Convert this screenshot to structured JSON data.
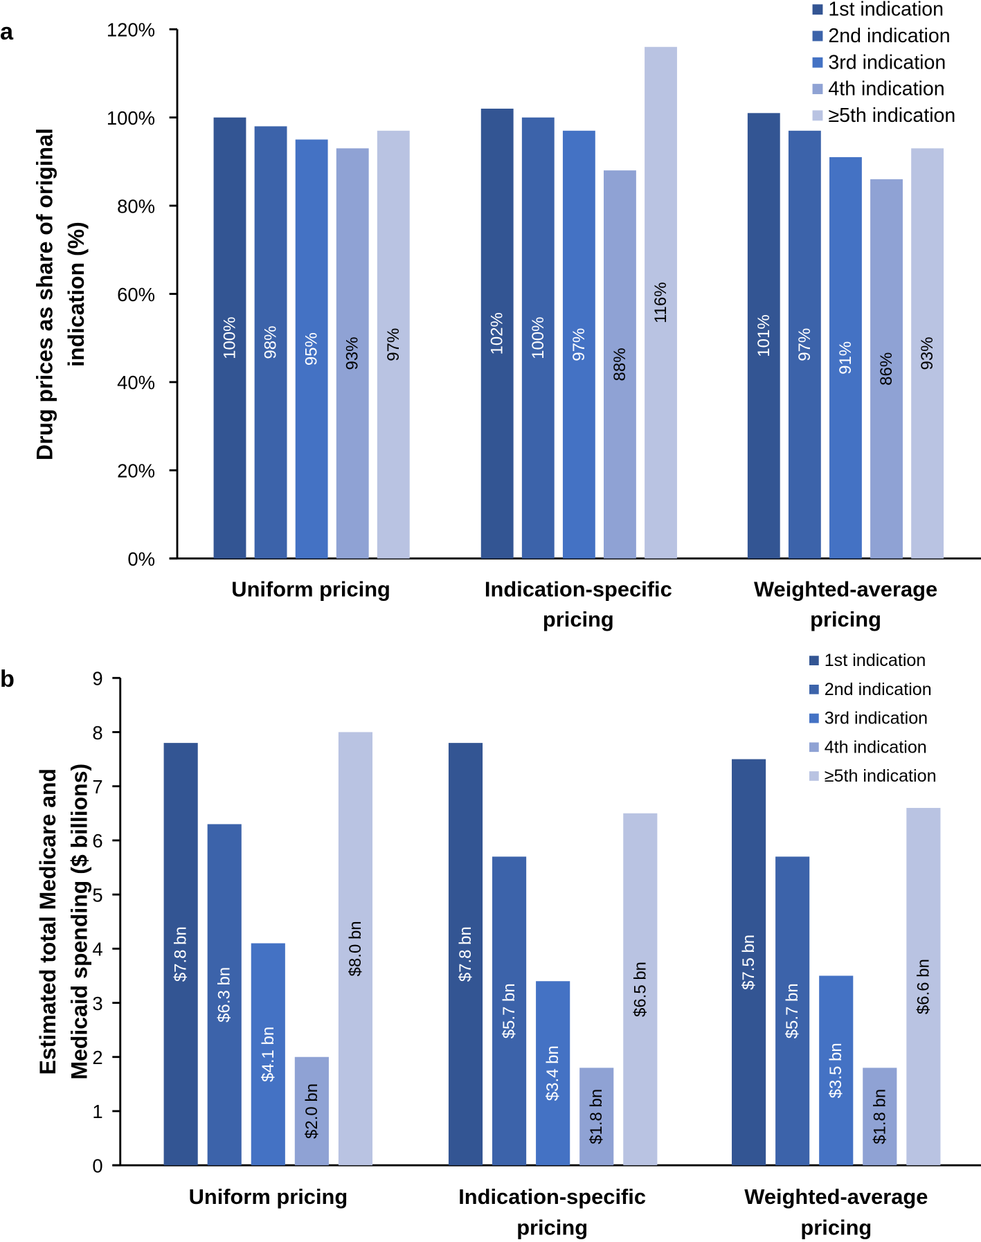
{
  "chart_data": [
    {
      "panel": "a",
      "type": "bar",
      "ylabel": "Drug prices as share of original indication (%)",
      "ylabel_lines": [
        "Drug prices as share of original",
        "indication (%)"
      ],
      "xlabel": "",
      "ylim": [
        0,
        120
      ],
      "yticks": [
        0,
        20,
        40,
        60,
        80,
        100,
        120
      ],
      "ytick_labels": [
        "0%",
        "20%",
        "40%",
        "60%",
        "80%",
        "100%",
        "120%"
      ],
      "categories": [
        "Uniform pricing",
        "Indication-specific pricing",
        "Weighted-average pricing"
      ],
      "category_lines": [
        [
          "Uniform pricing"
        ],
        [
          "Indication-specific",
          "pricing"
        ],
        [
          "Weighted-average",
          "pricing"
        ]
      ],
      "legend_position": "top-right",
      "grid": false,
      "series": [
        {
          "name": "1st indication",
          "color": "#335593",
          "values": [
            100,
            102,
            101
          ],
          "labels": [
            "100%",
            "102%",
            "101%"
          ],
          "label_color": "#ffffff"
        },
        {
          "name": "2nd indication",
          "color": "#3c63aa",
          "values": [
            98,
            100,
            97
          ],
          "labels": [
            "98%",
            "100%",
            "97%"
          ],
          "label_color": "#ffffff"
        },
        {
          "name": "3rd indication",
          "color": "#4472c4",
          "values": [
            95,
            97,
            91
          ],
          "labels": [
            "95%",
            "97%",
            "91%"
          ],
          "label_color": "#ffffff"
        },
        {
          "name": "4th indication",
          "color": "#8fa2d4",
          "values": [
            93,
            88,
            86
          ],
          "labels": [
            "93%",
            "88%",
            "86%"
          ],
          "label_color": "#000000"
        },
        {
          "name": "≥5th indication",
          "color": "#b9c3e2",
          "values": [
            97,
            116,
            93
          ],
          "labels": [
            "97%",
            "116%",
            "93%"
          ],
          "label_color": "#000000"
        }
      ]
    },
    {
      "panel": "b",
      "type": "bar",
      "ylabel": "Estimated total Medicare and Medicaid spending ($ billions)",
      "ylabel_lines": [
        "Estimated total Medicare and",
        "Medicaid spending ($ billions)"
      ],
      "xlabel": "",
      "ylim": [
        0,
        9
      ],
      "yticks": [
        0,
        1,
        2,
        3,
        4,
        5,
        6,
        7,
        8,
        9
      ],
      "ytick_labels": [
        "0",
        "1",
        "2",
        "3",
        "4",
        "5",
        "6",
        "7",
        "8",
        "9"
      ],
      "categories": [
        "Uniform pricing",
        "Indication-specific pricing",
        "Weighted-average pricing"
      ],
      "category_lines": [
        [
          "Uniform pricing"
        ],
        [
          "Indication-specific",
          "pricing"
        ],
        [
          "Weighted-average",
          "pricing"
        ]
      ],
      "legend_position": "top-right",
      "grid": false,
      "series": [
        {
          "name": "1st indication",
          "color": "#335593",
          "values": [
            7.8,
            7.8,
            7.5
          ],
          "labels": [
            "$7.8 bn",
            "$7.8 bn",
            "$7.5 bn"
          ],
          "label_color": "#ffffff"
        },
        {
          "name": "2nd indication",
          "color": "#3c63aa",
          "values": [
            6.3,
            5.7,
            5.7
          ],
          "labels": [
            "$6.3 bn",
            "$5.7 bn",
            "$5.7 bn"
          ],
          "label_color": "#ffffff"
        },
        {
          "name": "3rd indication",
          "color": "#4472c4",
          "values": [
            4.1,
            3.4,
            3.5
          ],
          "labels": [
            "$4.1 bn",
            "$3.4 bn",
            "$3.5 bn"
          ],
          "label_color": "#ffffff"
        },
        {
          "name": "4th indication",
          "color": "#8fa2d4",
          "values": [
            2.0,
            1.8,
            1.8
          ],
          "labels": [
            "$2.0 bn",
            "$1.8 bn",
            "$1.8 bn"
          ],
          "label_color": "#000000"
        },
        {
          "name": "≥5th indication",
          "color": "#b9c3e2",
          "values": [
            8.0,
            6.5,
            6.6
          ],
          "labels": [
            "$8.0 bn",
            "$6.5 bn",
            "$6.6 bn"
          ],
          "label_color": "#000000"
        }
      ]
    }
  ],
  "panel_labels": {
    "a": "a",
    "b": "b"
  }
}
